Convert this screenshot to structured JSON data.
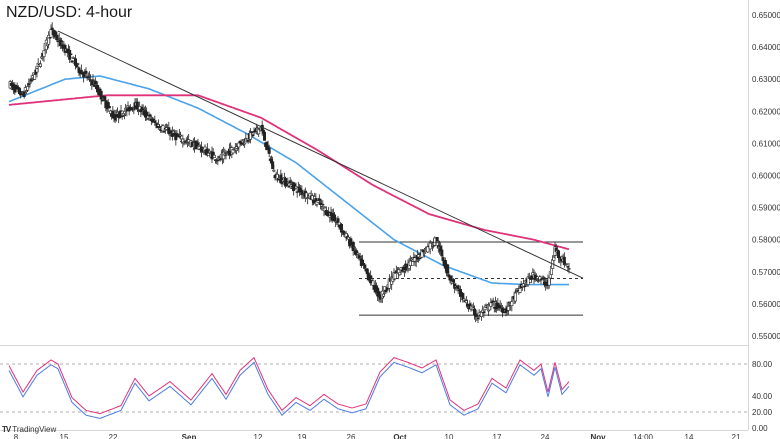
{
  "title": "NZD/USD: 4-hour",
  "brand": "TradingView",
  "brand_logo": "TV",
  "colors": {
    "up_candle": "#ffffff",
    "down_candle": "#222222",
    "ma_fast": "#4aa3e8",
    "ma_slow": "#e0327a",
    "trendline": "#333333",
    "channel": "#333333",
    "rsi_line_a": "#e0327a",
    "rsi_line_b": "#4a7be8",
    "grid_dashed": "#999999"
  },
  "chart_data": [
    {
      "type": "candlestick",
      "title": "NZD/USD: 4-hour",
      "x_ticks": [
        "8",
        "15",
        "22",
        "Sep",
        "12",
        "19",
        "26",
        "Oct",
        "10",
        "17",
        "24",
        "Nov",
        "14:00",
        "14",
        "21"
      ],
      "y_ticks": [
        "0.65000",
        "0.64000",
        "0.63000",
        "0.62000",
        "0.61000",
        "0.60000",
        "0.59000",
        "0.58000",
        "0.57000",
        "0.56000",
        "0.55000"
      ],
      "ylim": [
        0.55,
        0.65
      ],
      "price_path": [
        {
          "date": "Aug 7",
          "price": 0.6285
        },
        {
          "date": "Aug 9",
          "price": 0.625
        },
        {
          "date": "Aug 11",
          "price": 0.633
        },
        {
          "date": "Aug 13",
          "price": 0.645
        },
        {
          "date": "Aug 15",
          "price": 0.6395
        },
        {
          "date": "Aug 17",
          "price": 0.633
        },
        {
          "date": "Aug 19",
          "price": 0.629
        },
        {
          "date": "Aug 22",
          "price": 0.618
        },
        {
          "date": "Aug 25",
          "price": 0.622
        },
        {
          "date": "Aug 28",
          "price": 0.616
        },
        {
          "date": "Aug 31",
          "price": 0.612
        },
        {
          "date": "Sep 3",
          "price": 0.609
        },
        {
          "date": "Sep 6",
          "price": 0.605
        },
        {
          "date": "Sep 9",
          "price": 0.61
        },
        {
          "date": "Sep 12",
          "price": 0.615
        },
        {
          "date": "Sep 14",
          "price": 0.6
        },
        {
          "date": "Sep 17",
          "price": 0.596
        },
        {
          "date": "Sep 20",
          "price": 0.592
        },
        {
          "date": "Sep 23",
          "price": 0.585
        },
        {
          "date": "Sep 25",
          "price": 0.578
        },
        {
          "date": "Sep 27",
          "price": 0.57
        },
        {
          "date": "Sep 29",
          "price": 0.562
        },
        {
          "date": "Oct 1",
          "price": 0.569
        },
        {
          "date": "Oct 3",
          "price": 0.572
        },
        {
          "date": "Oct 5",
          "price": 0.576
        },
        {
          "date": "Oct 7",
          "price": 0.58
        },
        {
          "date": "Oct 9",
          "price": 0.568
        },
        {
          "date": "Oct 11",
          "price": 0.561
        },
        {
          "date": "Oct 13",
          "price": 0.556
        },
        {
          "date": "Oct 15",
          "price": 0.56
        },
        {
          "date": "Oct 17",
          "price": 0.558
        },
        {
          "date": "Oct 19",
          "price": 0.565
        },
        {
          "date": "Oct 21",
          "price": 0.569
        },
        {
          "date": "Oct 23",
          "price": 0.566
        },
        {
          "date": "Oct 24",
          "price": 0.577
        },
        {
          "date": "Oct 26",
          "price": 0.571
        }
      ],
      "ma_blue": [
        {
          "date": "Aug 7",
          "price": 0.623
        },
        {
          "date": "Aug 15",
          "price": 0.63
        },
        {
          "date": "Aug 20",
          "price": 0.631
        },
        {
          "date": "Aug 27",
          "price": 0.627
        },
        {
          "date": "Sep 3",
          "price": 0.621
        },
        {
          "date": "Sep 10",
          "price": 0.613
        },
        {
          "date": "Sep 17",
          "price": 0.604
        },
        {
          "date": "Sep 24",
          "price": 0.592
        },
        {
          "date": "Oct 1",
          "price": 0.58
        },
        {
          "date": "Oct 8",
          "price": 0.572
        },
        {
          "date": "Oct 15",
          "price": 0.5665
        },
        {
          "date": "Oct 20",
          "price": 0.566
        },
        {
          "date": "Oct 26",
          "price": 0.566
        }
      ],
      "ma_pink": [
        {
          "date": "Aug 7",
          "price": 0.622
        },
        {
          "date": "Aug 21",
          "price": 0.625
        },
        {
          "date": "Sep 3",
          "price": 0.625
        },
        {
          "date": "Sep 12",
          "price": 0.618
        },
        {
          "date": "Sep 20",
          "price": 0.608
        },
        {
          "date": "Sep 28",
          "price": 0.597
        },
        {
          "date": "Oct 6",
          "price": 0.588
        },
        {
          "date": "Oct 14",
          "price": 0.583
        },
        {
          "date": "Oct 21",
          "price": 0.58
        },
        {
          "date": "Oct 26",
          "price": 0.577
        }
      ],
      "trendline": [
        {
          "date": "Aug 14",
          "price": 0.645
        },
        {
          "date": "Oct 28",
          "price": 0.568
        }
      ],
      "channel_top": {
        "from": "Sep 26",
        "to": "Oct 28",
        "price": 0.5793
      },
      "channel_bottom": {
        "from": "Sep 26",
        "to": "Oct 28",
        "price": 0.5565
      },
      "channel_mid": {
        "from": "Sep 26",
        "to": "Oct 28",
        "price": 0.5679
      }
    },
    {
      "type": "line",
      "title": "RSI",
      "y_ticks": [
        "80.00",
        "40.00",
        "20.00",
        "0.00"
      ],
      "ylim": [
        0,
        100
      ],
      "reference_levels": [
        80,
        20
      ],
      "rsi": [
        {
          "date": "Aug 7",
          "value": 78
        },
        {
          "date": "Aug 9",
          "value": 45
        },
        {
          "date": "Aug 11",
          "value": 72
        },
        {
          "date": "Aug 13",
          "value": 85
        },
        {
          "date": "Aug 14",
          "value": 80
        },
        {
          "date": "Aug 16",
          "value": 38
        },
        {
          "date": "Aug 18",
          "value": 22
        },
        {
          "date": "Aug 20",
          "value": 18
        },
        {
          "date": "Aug 23",
          "value": 28
        },
        {
          "date": "Aug 25",
          "value": 62
        },
        {
          "date": "Aug 27",
          "value": 40
        },
        {
          "date": "Aug 30",
          "value": 58
        },
        {
          "date": "Sep 2",
          "value": 35
        },
        {
          "date": "Sep 5",
          "value": 68
        },
        {
          "date": "Sep 7",
          "value": 42
        },
        {
          "date": "Sep 9",
          "value": 72
        },
        {
          "date": "Sep 11",
          "value": 88
        },
        {
          "date": "Sep 13",
          "value": 48
        },
        {
          "date": "Sep 15",
          "value": 22
        },
        {
          "date": "Sep 17",
          "value": 38
        },
        {
          "date": "Sep 19",
          "value": 28
        },
        {
          "date": "Sep 21",
          "value": 42
        },
        {
          "date": "Sep 23",
          "value": 30
        },
        {
          "date": "Sep 25",
          "value": 25
        },
        {
          "date": "Sep 27",
          "value": 30
        },
        {
          "date": "Sep 29",
          "value": 70
        },
        {
          "date": "Oct 1",
          "value": 88
        },
        {
          "date": "Oct 3",
          "value": 82
        },
        {
          "date": "Oct 5",
          "value": 75
        },
        {
          "date": "Oct 7",
          "value": 85
        },
        {
          "date": "Oct 9",
          "value": 35
        },
        {
          "date": "Oct 11",
          "value": 22
        },
        {
          "date": "Oct 13",
          "value": 30
        },
        {
          "date": "Oct 15",
          "value": 62
        },
        {
          "date": "Oct 17",
          "value": 50
        },
        {
          "date": "Oct 19",
          "value": 85
        },
        {
          "date": "Oct 21",
          "value": 72
        },
        {
          "date": "Oct 22",
          "value": 80
        },
        {
          "date": "Oct 23",
          "value": 45
        },
        {
          "date": "Oct 24",
          "value": 82
        },
        {
          "date": "Oct 25",
          "value": 48
        },
        {
          "date": "Oct 26",
          "value": 58
        }
      ]
    }
  ]
}
